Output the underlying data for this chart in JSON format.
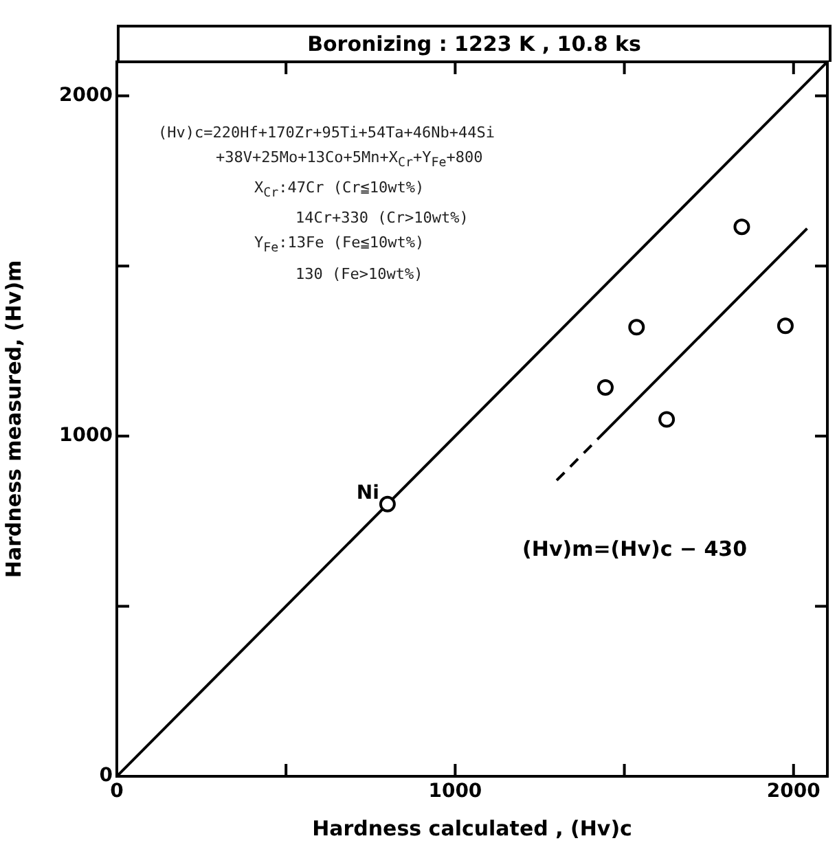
{
  "chart_data": {
    "type": "scatter",
    "title": "Boronizing : 1223 K , 10.8 ks",
    "xlabel": "Hardness calculated , (Hv)c",
    "ylabel": "Hardness measured, (Hv)m",
    "xlim": [
      0,
      2100
    ],
    "ylim": [
      0,
      2100
    ],
    "xticks": [
      0,
      {
        "value": 500,
        "label": null
      },
      1000,
      {
        "value": 1500,
        "label": null
      },
      2000
    ],
    "yticks": [
      0,
      {
        "value": 500,
        "label": null
      },
      1000,
      {
        "value": 1500,
        "label": null
      },
      2000
    ],
    "grid": false,
    "legend": false,
    "marker": "circle",
    "series": [
      {
        "type": "scatter",
        "color": "#000000",
        "x": [
          800,
          1536,
          1444,
          1625,
          1976,
          1847
        ],
        "values": [
          800,
          1320,
          1143,
          1049,
          1324,
          1615
        ]
      },
      {
        "type": "line",
        "color": "#000000",
        "line_style": "solid",
        "marker": "none",
        "x": [
          0,
          2100
        ],
        "values": [
          0,
          2100
        ]
      },
      {
        "type": "line",
        "color": "#000000",
        "line_style": "dashed",
        "marker": "none",
        "x": [
          1300,
          1420
        ],
        "values": [
          870,
          990
        ]
      },
      {
        "type": "line",
        "color": "#000000",
        "line_style": "solid",
        "marker": "none",
        "x": [
          1420,
          2040
        ],
        "values": [
          990,
          1610
        ]
      }
    ],
    "annotations": [
      "(Hv)c=220Hf+170Zr+95Ti+54Ta+46Nb+44Si",
      "+38V+25Mo+13Co+5Mn+X$_{Cr}$+Y$_{Fe}$+800",
      "X$_{Cr}$:47Cr (Cr≦10wt%)",
      "14Cr+330 (Cr>10wt%)",
      "Y$_{Fe}$:13Fe (Fe≦10wt%)",
      "130 (Fe>10wt%)",
      {
        "text": "Ni",
        "x": 800,
        "y": 800
      },
      {
        "text": "(Hv)m=(Hv)c − 430",
        "x": 1300,
        "y": 870
      }
    ]
  }
}
